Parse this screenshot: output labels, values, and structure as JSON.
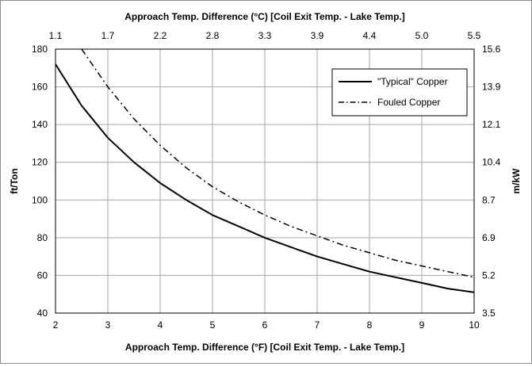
{
  "chart_data": {
    "type": "line",
    "title": "",
    "xlabel": "Approach Temp. Difference (°F) [Coil Exit Temp. - Lake Temp.]",
    "ylabel": "ft/Ton",
    "x2label": "Approach Temp. Difference (°C) [Coil Exit Temp. - Lake Temp.]",
    "y2label": "m/kW",
    "xlim": [
      2,
      10
    ],
    "ylim": [
      40,
      180
    ],
    "x_ticks": [
      "2",
      "3",
      "4",
      "5",
      "6",
      "7",
      "8",
      "9",
      "10"
    ],
    "y_ticks": [
      "40",
      "60",
      "80",
      "100",
      "120",
      "140",
      "160",
      "180"
    ],
    "x2_ticks": [
      "1.1",
      "1.7",
      "2.2",
      "2.8",
      "3.3",
      "3.9",
      "4.4",
      "5.0",
      "5.5"
    ],
    "y2_ticks": [
      "3.5",
      "5.2",
      "6.9",
      "8.7",
      "10.4",
      "12.1",
      "13.9",
      "15.6"
    ],
    "grid": true,
    "legend_position": "top-right",
    "series": [
      {
        "name": "\"Typical\" Copper",
        "style": "solid",
        "color": "#000000",
        "x": [
          2,
          2.5,
          3,
          3.5,
          4,
          4.5,
          5,
          5.5,
          6,
          6.5,
          7,
          7.5,
          8,
          8.5,
          9,
          9.5,
          10
        ],
        "y": [
          172,
          150,
          133,
          120,
          109,
          100,
          92,
          86,
          80,
          75,
          70,
          66,
          62,
          59,
          56,
          53,
          51
        ]
      },
      {
        "name": "Fouled Copper",
        "style": "dashdot",
        "color": "#000000",
        "x": [
          2.5,
          3,
          3.5,
          4,
          4.5,
          5,
          5.5,
          6,
          6.5,
          7,
          7.5,
          8,
          8.5,
          9,
          9.5,
          10
        ],
        "y": [
          180,
          160,
          143,
          129,
          117,
          107,
          99,
          92,
          86,
          81,
          76,
          72,
          68,
          65,
          62,
          59
        ]
      }
    ]
  }
}
